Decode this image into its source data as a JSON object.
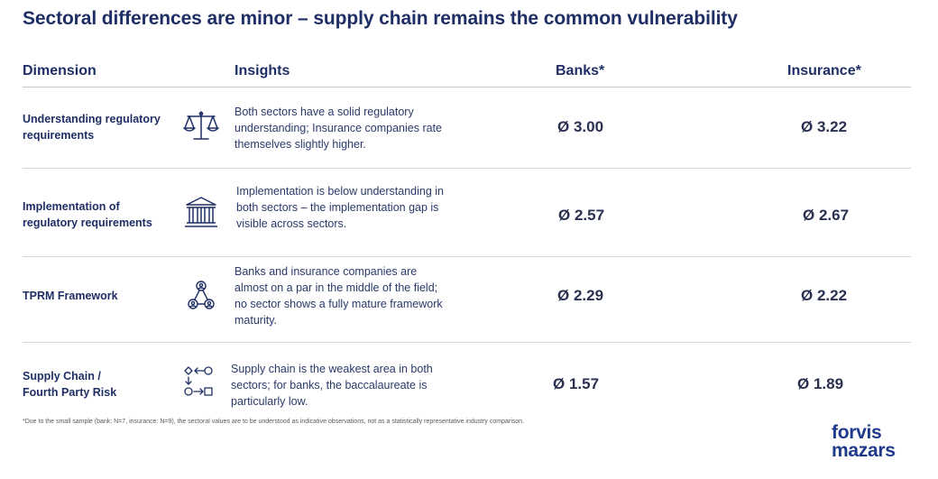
{
  "title": "Sectoral differences are minor – supply chain remains the common vulnerability",
  "headers": {
    "dimension": "Dimension",
    "insights": "Insights",
    "banks": "Banks*",
    "insurance": "Insurance*"
  },
  "rows": [
    {
      "dimension_line1": "Understanding regulatory",
      "dimension_line2": "requirements",
      "icon": "scales-icon",
      "insight": "Both sectors have a solid regulatory understanding; Insurance companies rate themselves slightly higher.",
      "banks": "Ø 3.00",
      "insurance": "Ø 3.22"
    },
    {
      "dimension_line1": "Implementation of",
      "dimension_line2": "regulatory requirements",
      "icon": "bank-building-icon",
      "insight": "Implementation is below understanding in both sectors – the implementation gap is visible across sectors.",
      "banks": "Ø 2.57",
      "insurance": "Ø 2.67"
    },
    {
      "dimension_line1": "TPRM Framework",
      "dimension_line2": "",
      "icon": "people-network-icon",
      "insight": "Banks and insurance companies are almost on a par in the middle of the field; no sector shows a fully mature framework maturity.",
      "banks": "Ø 2.29",
      "insurance": "Ø 2.22"
    },
    {
      "dimension_line1": "Supply Chain /",
      "dimension_line2": "Fourth Party Risk",
      "icon": "supply-chain-icon",
      "insight": "Supply chain is the weakest area in both sectors; for banks, the baccalaureate is particularly low.",
      "banks": "Ø 1.57",
      "insurance": "Ø 1.89"
    }
  ],
  "footnote": "*Due to the small sample (bank: N=7, insurance: N=9), the sectoral values are to be understood as indicative observations, not as a statistically representative industry comparison.",
  "logo": {
    "line1": "forvis",
    "line2": "mazars"
  }
}
